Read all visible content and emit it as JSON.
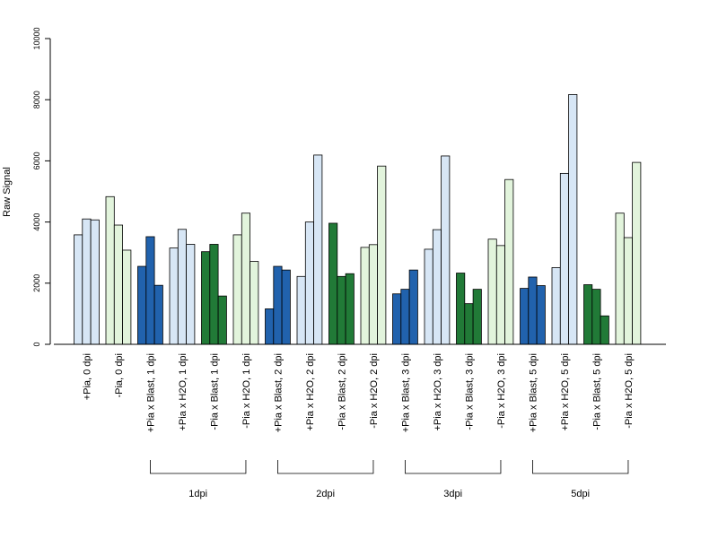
{
  "chart_data": {
    "type": "bar",
    "title": "",
    "xlabel": "",
    "ylabel": "Raw Signal",
    "ylim": [
      0,
      10000
    ],
    "yticks": [
      0,
      2000,
      4000,
      6000,
      8000,
      10000
    ],
    "grid": false,
    "legend": "none",
    "colors": {
      "light_blue": "#d7e6f5",
      "light_green": "#e2f4dc",
      "dark_blue": "#2162ad",
      "dark_green": "#217a37",
      "stroke": "#000000"
    },
    "categories": [
      {
        "label": "+Pia, 0 dpi",
        "values": [
          3580,
          4100,
          4070
        ],
        "color": "light_blue"
      },
      {
        "label": "-Pia, 0 dpi",
        "values": [
          4830,
          3900,
          3080
        ],
        "color": "light_green"
      },
      {
        "label": "+Pia x Blast, 1 dpi",
        "values": [
          2550,
          3520,
          1930
        ],
        "color": "dark_blue"
      },
      {
        "label": "+Pia x H2O, 1 dpi",
        "values": [
          3150,
          3760,
          3270
        ],
        "color": "light_blue"
      },
      {
        "label": "-Pia x Blast, 1 dpi",
        "values": [
          3030,
          3270,
          1580
        ],
        "color": "dark_green"
      },
      {
        "label": "-Pia x H2O, 1 dpi",
        "values": [
          3580,
          4290,
          2710
        ],
        "color": "light_green"
      },
      {
        "label": "+Pia x Blast, 2 dpi",
        "values": [
          1160,
          2550,
          2430
        ],
        "color": "dark_blue"
      },
      {
        "label": "+Pia x H2O, 2 dpi",
        "values": [
          2220,
          4000,
          6190
        ],
        "color": "light_blue"
      },
      {
        "label": "-Pia x Blast, 2 dpi",
        "values": [
          3960,
          2220,
          2310
        ],
        "color": "dark_green"
      },
      {
        "label": "-Pia x H2O, 2 dpi",
        "values": [
          3170,
          3260,
          5830
        ],
        "color": "light_green"
      },
      {
        "label": "+Pia x Blast, 3 dpi",
        "values": [
          1650,
          1800,
          2430
        ],
        "color": "dark_blue"
      },
      {
        "label": "+Pia x H2O, 3 dpi",
        "values": [
          3110,
          3750,
          6160
        ],
        "color": "light_blue"
      },
      {
        "label": "-Pia x Blast, 3 dpi",
        "values": [
          2330,
          1330,
          1800
        ],
        "color": "dark_green"
      },
      {
        "label": "-Pia x H2O, 3 dpi",
        "values": [
          3440,
          3230,
          5390
        ],
        "color": "light_green"
      },
      {
        "label": "+Pia x Blast, 5 dpi",
        "values": [
          1830,
          2200,
          1920
        ],
        "color": "dark_blue"
      },
      {
        "label": "+Pia x H2O, 5 dpi",
        "values": [
          2510,
          5590,
          8170
        ],
        "color": "light_blue"
      },
      {
        "label": "-Pia x Blast, 5 dpi",
        "values": [
          1950,
          1800,
          930
        ],
        "color": "dark_green"
      },
      {
        "label": "-Pia x H2O, 5 dpi",
        "values": [
          4290,
          3490,
          5950
        ],
        "color": "light_green"
      }
    ],
    "groups": [
      {
        "label": "1dpi",
        "from": 2,
        "to": 5
      },
      {
        "label": "2dpi",
        "from": 6,
        "to": 9
      },
      {
        "label": "3dpi",
        "from": 10,
        "to": 13
      },
      {
        "label": "5dpi",
        "from": 14,
        "to": 17
      }
    ]
  }
}
